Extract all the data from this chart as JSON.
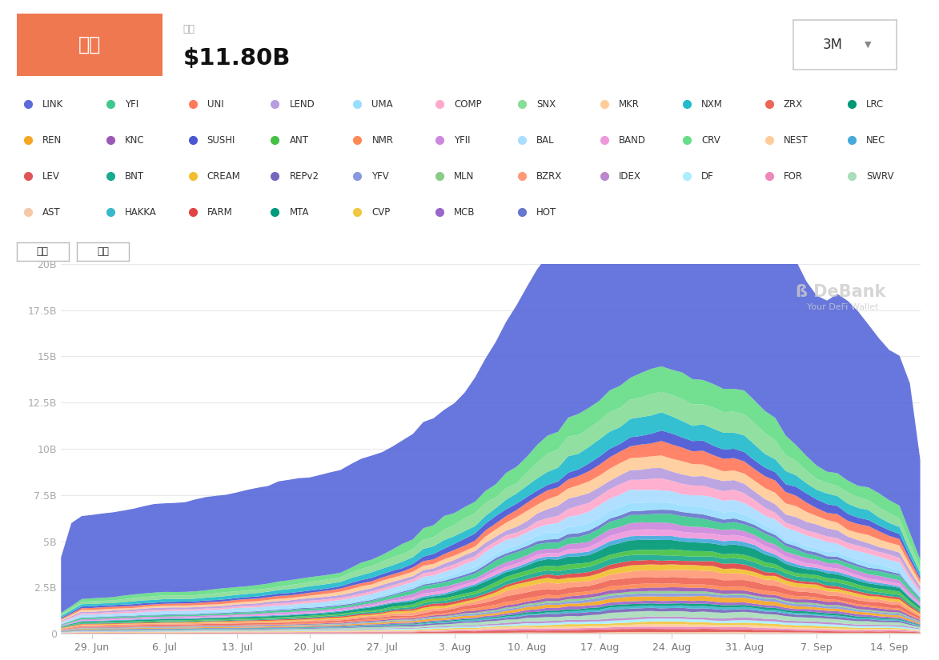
{
  "title": "市値",
  "subtitle": "市値",
  "value": "$11.80B",
  "period": "3M",
  "header_color": "#f07850",
  "yticks": [
    "0",
    "2.5B",
    "5B",
    "7.5B",
    "10B",
    "12.5B",
    "15B",
    "17.5B",
    "20B"
  ],
  "ytick_vals": [
    0,
    2.5,
    5,
    7.5,
    10,
    12.5,
    15,
    17.5,
    20
  ],
  "xtick_labels": [
    "29. Jun",
    "6. Jul",
    "13. Jul",
    "20. Jul",
    "27. Jul",
    "3. Aug",
    "10. Aug",
    "17. Aug",
    "24. Aug",
    "31. Aug",
    "7. Sep",
    "14. Sep"
  ],
  "xtick_pos": [
    3,
    10,
    17,
    24,
    31,
    38,
    45,
    52,
    59,
    66,
    73,
    80
  ],
  "legend_rows": [
    [
      "LINK",
      "YFI",
      "UNI",
      "LEND",
      "UMA",
      "COMP",
      "SNX",
      "MKR",
      "NXM",
      "ZRX",
      "LRC"
    ],
    [
      "REN",
      "KNC",
      "SUSHI",
      "ANT",
      "NMR",
      "YFII",
      "BAL",
      "BAND",
      "CRV",
      "NEST",
      "NEC"
    ],
    [
      "LEV",
      "BNT",
      "CREAM",
      "REPv2",
      "YFV",
      "MLN",
      "BZRX",
      "IDEX",
      "DF",
      "FOR",
      "SWRV"
    ],
    [
      "AST",
      "HAKKA",
      "FARM",
      "MTA",
      "CVP",
      "MCB",
      "HOT"
    ]
  ],
  "token_colors": {
    "LINK": "#5b6bda",
    "REN": "#f5a623",
    "LEV": "#e05555",
    "AST": "#f5c8a8",
    "YFI": "#3ec98e",
    "KNC": "#9b59b6",
    "BNT": "#1aaa8e",
    "HAKKA": "#3ab8cc",
    "UNI": "#ff7a5c",
    "SUSHI": "#4a56d4",
    "CREAM": "#f0c030",
    "FARM": "#e04444",
    "LEND": "#b89de0",
    "ANT": "#45c145",
    "REPv2": "#7766bb",
    "MTA": "#00997a",
    "UMA": "#99ddff",
    "NMR": "#ff8855",
    "YFV": "#8899dd",
    "CVP": "#f0c840",
    "COMP": "#ffaacc",
    "YFII": "#cc88dd",
    "MLN": "#88cc88",
    "MCB": "#9966cc",
    "SNX": "#88dd99",
    "BAL": "#aaddff",
    "BZRX": "#ff9977",
    "HOT": "#6677cc",
    "MKR": "#ffcc99",
    "BAND": "#ee99dd",
    "IDEX": "#bb88cc",
    "NXM": "#22bbcc",
    "CRV": "#66dd88",
    "DF": "#aaeeff",
    "ZRX": "#ee6655",
    "NEST": "#ffcc99",
    "FOR": "#ee88bb",
    "LRC": "#009977",
    "NEC": "#44aadd",
    "SWRV": "#aaddbb"
  },
  "n_points": 84
}
